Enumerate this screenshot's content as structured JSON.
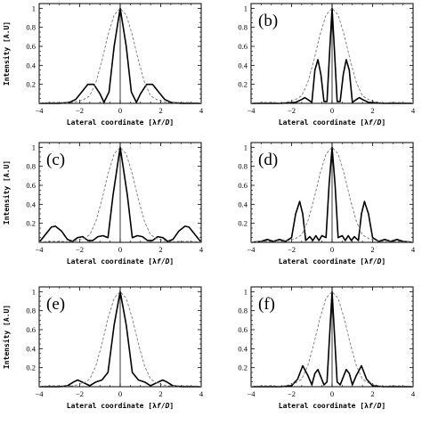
{
  "chart_data": [
    {
      "id": "a",
      "type": "line",
      "panel_label": "",
      "xlabel_parts": [
        "Lateral coordinate [λ",
        "f",
        "/",
        "D",
        "]"
      ],
      "ylabel": "Intensity [A.U]",
      "xlim": [
        -4,
        4
      ],
      "ylim": [
        0,
        1.05
      ],
      "xticks": [
        "−4",
        "−2",
        "0",
        "2",
        "4"
      ],
      "yticks": [
        "0.2",
        "0.4",
        "0.6",
        "0.8",
        "1"
      ],
      "series": [
        {
          "style": "solid",
          "x": [
            -4,
            -3,
            -2.5,
            -2.2,
            -1.9,
            -1.6,
            -1.3,
            -1.0,
            -0.8,
            -0.55,
            -0.3,
            0,
            0.3,
            0.55,
            0.8,
            1.0,
            1.3,
            1.6,
            1.9,
            2.2,
            2.5,
            3,
            4
          ],
          "y": [
            0,
            0,
            0.01,
            0.04,
            0.12,
            0.2,
            0.2,
            0.1,
            0.01,
            0.12,
            0.6,
            1.0,
            0.6,
            0.12,
            0.01,
            0.1,
            0.2,
            0.2,
            0.12,
            0.04,
            0.01,
            0,
            0
          ]
        },
        {
          "style": "dashed",
          "x": [
            -4,
            -3.3,
            -2.9,
            -2.5,
            -2.1,
            -1.8,
            -1.5,
            -1.2,
            -0.9,
            -0.6,
            -0.3,
            0,
            0.3,
            0.6,
            0.9,
            1.2,
            1.5,
            1.8,
            2.1,
            2.5,
            2.9,
            3.3,
            4
          ],
          "y": [
            0.005,
            0.01,
            0.01,
            0.005,
            0.02,
            0.04,
            0.08,
            0.22,
            0.45,
            0.72,
            0.93,
            1.0,
            0.93,
            0.72,
            0.45,
            0.22,
            0.08,
            0.04,
            0.02,
            0.005,
            0.01,
            0.01,
            0.005
          ]
        }
      ]
    },
    {
      "id": "b",
      "type": "line",
      "panel_label": "(b)",
      "xlabel_parts": [
        "Lateral coordinate [λ",
        "f",
        "/",
        "D",
        "]"
      ],
      "ylabel": "",
      "xlim": [
        -4,
        4
      ],
      "ylim": [
        0,
        1.05
      ],
      "xticks": [
        "−4",
        "−2",
        "0",
        "2",
        "4"
      ],
      "yticks": [
        "0.2",
        "0.4",
        "0.6",
        "0.8",
        "1"
      ],
      "series": [
        {
          "style": "solid",
          "x": [
            -4,
            -2.5,
            -1.8,
            -1.5,
            -1.35,
            -1.2,
            -1.0,
            -0.85,
            -0.7,
            -0.55,
            -0.4,
            -0.25,
            -0.12,
            0,
            0.12,
            0.25,
            0.4,
            0.55,
            0.7,
            0.85,
            1.0,
            1.2,
            1.35,
            1.5,
            1.8,
            2.5,
            4
          ],
          "y": [
            0,
            0,
            0.01,
            0.04,
            0.06,
            0.04,
            0.01,
            0.35,
            0.46,
            0.3,
            0.02,
            0.02,
            0.55,
            1.0,
            0.55,
            0.02,
            0.02,
            0.3,
            0.46,
            0.35,
            0.01,
            0.04,
            0.06,
            0.04,
            0.01,
            0,
            0
          ]
        },
        {
          "style": "dashed",
          "x": [
            -4,
            -3.3,
            -2.9,
            -2.5,
            -2.1,
            -1.8,
            -1.5,
            -1.2,
            -0.9,
            -0.6,
            -0.3,
            0,
            0.3,
            0.6,
            0.9,
            1.2,
            1.5,
            1.8,
            2.1,
            2.5,
            2.9,
            3.3,
            4
          ],
          "y": [
            0.005,
            0.01,
            0.01,
            0.005,
            0.02,
            0.04,
            0.08,
            0.22,
            0.45,
            0.72,
            0.93,
            1.0,
            0.93,
            0.72,
            0.45,
            0.22,
            0.08,
            0.04,
            0.02,
            0.005,
            0.01,
            0.01,
            0.005
          ]
        }
      ]
    },
    {
      "id": "c",
      "type": "line",
      "panel_label": "(c)",
      "xlabel_parts": [
        "Lateral coordinate [λ",
        "f",
        "/",
        "D",
        "]"
      ],
      "ylabel": "Intensity [A.U]",
      "xlim": [
        -4,
        4
      ],
      "ylim": [
        0,
        1.05
      ],
      "xticks": [
        "−4",
        "−2",
        "0",
        "2",
        "4"
      ],
      "yticks": [
        "0.2",
        "0.4",
        "0.6",
        "0.8",
        "1"
      ],
      "series": [
        {
          "style": "solid",
          "x": [
            -4,
            -3.7,
            -3.4,
            -3.2,
            -2.9,
            -2.6,
            -2.35,
            -2.1,
            -1.85,
            -1.6,
            -1.35,
            -1.1,
            -0.85,
            -0.6,
            -0.35,
            0,
            0.35,
            0.6,
            0.85,
            1.1,
            1.35,
            1.6,
            1.85,
            2.1,
            2.35,
            2.6,
            2.9,
            3.2,
            3.4,
            3.7,
            4
          ],
          "y": [
            0.0,
            0.08,
            0.16,
            0.17,
            0.12,
            0.03,
            0.01,
            0.05,
            0.06,
            0.02,
            0.02,
            0.06,
            0.07,
            0.05,
            0.5,
            1.0,
            0.5,
            0.05,
            0.07,
            0.06,
            0.02,
            0.02,
            0.06,
            0.05,
            0.01,
            0.03,
            0.12,
            0.17,
            0.16,
            0.08,
            0.0
          ]
        },
        {
          "style": "dashed",
          "x": [
            -4,
            -3.3,
            -2.9,
            -2.5,
            -2.1,
            -1.8,
            -1.5,
            -1.2,
            -0.9,
            -0.6,
            -0.3,
            0,
            0.3,
            0.6,
            0.9,
            1.2,
            1.5,
            1.8,
            2.1,
            2.5,
            2.9,
            3.3,
            4
          ],
          "y": [
            0.005,
            0.01,
            0.01,
            0.005,
            0.02,
            0.04,
            0.08,
            0.22,
            0.45,
            0.72,
            0.93,
            1.0,
            0.93,
            0.72,
            0.45,
            0.22,
            0.08,
            0.04,
            0.02,
            0.005,
            0.01,
            0.01,
            0.005
          ]
        }
      ]
    },
    {
      "id": "d",
      "type": "line",
      "panel_label": "(d)",
      "xlabel_parts": [
        "Lateral coordinate [λ",
        "f",
        "/",
        "D",
        "]"
      ],
      "ylabel": "",
      "xlim": [
        -4,
        4
      ],
      "ylim": [
        0,
        1.05
      ],
      "xticks": [
        "−4",
        "−2",
        "0",
        "2",
        "4"
      ],
      "yticks": [
        "0.2",
        "0.4",
        "0.6",
        "0.8",
        "1"
      ],
      "series": [
        {
          "style": "solid",
          "x": [
            -4,
            -3.5,
            -3.2,
            -2.9,
            -2.6,
            -2.3,
            -2.0,
            -1.8,
            -1.6,
            -1.45,
            -1.3,
            -1.1,
            -0.95,
            -0.8,
            -0.65,
            -0.5,
            -0.3,
            -0.15,
            0,
            0.15,
            0.3,
            0.5,
            0.65,
            0.8,
            0.95,
            1.1,
            1.3,
            1.45,
            1.6,
            1.8,
            2.0,
            2.3,
            2.6,
            2.9,
            3.2,
            3.5,
            4
          ],
          "y": [
            0,
            0.01,
            0.03,
            0.01,
            0.03,
            0.01,
            0.05,
            0.3,
            0.43,
            0.3,
            0.02,
            0.06,
            0.02,
            0.07,
            0.02,
            0.07,
            0.05,
            0.6,
            1.0,
            0.6,
            0.05,
            0.07,
            0.02,
            0.07,
            0.02,
            0.06,
            0.02,
            0.3,
            0.43,
            0.3,
            0.05,
            0.01,
            0.03,
            0.01,
            0.03,
            0.01,
            0
          ]
        },
        {
          "style": "dashed",
          "x": [
            -4,
            -3.3,
            -2.9,
            -2.5,
            -2.1,
            -1.8,
            -1.5,
            -1.2,
            -0.9,
            -0.6,
            -0.3,
            0,
            0.3,
            0.6,
            0.9,
            1.2,
            1.5,
            1.8,
            2.1,
            2.5,
            2.9,
            3.3,
            4
          ],
          "y": [
            0.005,
            0.01,
            0.01,
            0.005,
            0.02,
            0.04,
            0.08,
            0.22,
            0.45,
            0.72,
            0.93,
            1.0,
            0.93,
            0.72,
            0.45,
            0.22,
            0.08,
            0.04,
            0.02,
            0.005,
            0.01,
            0.01,
            0.005
          ]
        }
      ]
    },
    {
      "id": "e",
      "type": "line",
      "panel_label": "(e)",
      "xlabel_parts": [
        "Lateral coordinate [λ",
        "f",
        "/",
        "D",
        "]"
      ],
      "ylabel": "Intensity [A.U]",
      "xlim": [
        -4,
        4
      ],
      "ylim": [
        0,
        1.05
      ],
      "xticks": [
        "−4",
        "−2",
        "0",
        "2",
        "4"
      ],
      "yticks": [
        "0.2",
        "0.4",
        "0.6",
        "0.8",
        "1"
      ],
      "series": [
        {
          "style": "solid",
          "x": [
            -4,
            -3.0,
            -2.6,
            -2.3,
            -2.1,
            -1.8,
            -1.5,
            -1.2,
            -0.9,
            -0.6,
            -0.3,
            0,
            0.3,
            0.6,
            0.9,
            1.2,
            1.5,
            1.8,
            2.1,
            2.3,
            2.6,
            3.0,
            4
          ],
          "y": [
            0,
            0,
            0.01,
            0.05,
            0.07,
            0.04,
            0.01,
            0.05,
            0.07,
            0.15,
            0.65,
            1.0,
            0.65,
            0.15,
            0.07,
            0.05,
            0.01,
            0.04,
            0.07,
            0.05,
            0.01,
            0,
            0
          ]
        },
        {
          "style": "dashed",
          "x": [
            -4,
            -3.3,
            -2.9,
            -2.5,
            -2.1,
            -1.8,
            -1.5,
            -1.2,
            -0.9,
            -0.6,
            -0.3,
            0,
            0.3,
            0.6,
            0.9,
            1.2,
            1.5,
            1.8,
            2.1,
            2.5,
            2.9,
            3.3,
            4
          ],
          "y": [
            0.005,
            0.01,
            0.01,
            0.005,
            0.02,
            0.04,
            0.08,
            0.22,
            0.45,
            0.72,
            0.93,
            1.0,
            0.93,
            0.72,
            0.45,
            0.22,
            0.08,
            0.04,
            0.02,
            0.005,
            0.01,
            0.01,
            0.005
          ]
        }
      ]
    },
    {
      "id": "f",
      "type": "line",
      "panel_label": "(f)",
      "xlabel_parts": [
        "Lateral coordinate [λ",
        "f",
        "/",
        "D",
        "]"
      ],
      "ylabel": "",
      "xlim": [
        -4,
        4
      ],
      "ylim": [
        0,
        1.05
      ],
      "xticks": [
        "−4",
        "−2",
        "0",
        "2",
        "4"
      ],
      "yticks": [
        "0.2",
        "0.4",
        "0.6",
        "0.8",
        "1"
      ],
      "series": [
        {
          "style": "solid",
          "x": [
            -4,
            -2.5,
            -2.0,
            -1.7,
            -1.45,
            -1.2,
            -1.0,
            -0.85,
            -0.7,
            -0.55,
            -0.4,
            -0.25,
            -0.12,
            0,
            0.12,
            0.25,
            0.4,
            0.55,
            0.7,
            0.85,
            1.0,
            1.2,
            1.45,
            1.7,
            2.0,
            2.5,
            4
          ],
          "y": [
            0,
            0,
            0.01,
            0.08,
            0.22,
            0.12,
            0.02,
            0.14,
            0.18,
            0.1,
            0.02,
            0.05,
            0.55,
            1.0,
            0.55,
            0.05,
            0.02,
            0.1,
            0.18,
            0.14,
            0.02,
            0.12,
            0.22,
            0.08,
            0.01,
            0,
            0
          ]
        },
        {
          "style": "dashed",
          "x": [
            -4,
            -3.3,
            -2.9,
            -2.5,
            -2.1,
            -1.8,
            -1.5,
            -1.2,
            -0.9,
            -0.6,
            -0.3,
            0,
            0.3,
            0.6,
            0.9,
            1.2,
            1.5,
            1.8,
            2.1,
            2.5,
            2.9,
            3.3,
            4
          ],
          "y": [
            0.005,
            0.01,
            0.01,
            0.005,
            0.02,
            0.04,
            0.08,
            0.22,
            0.45,
            0.72,
            0.93,
            1.0,
            0.93,
            0.72,
            0.45,
            0.22,
            0.08,
            0.04,
            0.02,
            0.005,
            0.01,
            0.01,
            0.005
          ]
        }
      ]
    }
  ]
}
